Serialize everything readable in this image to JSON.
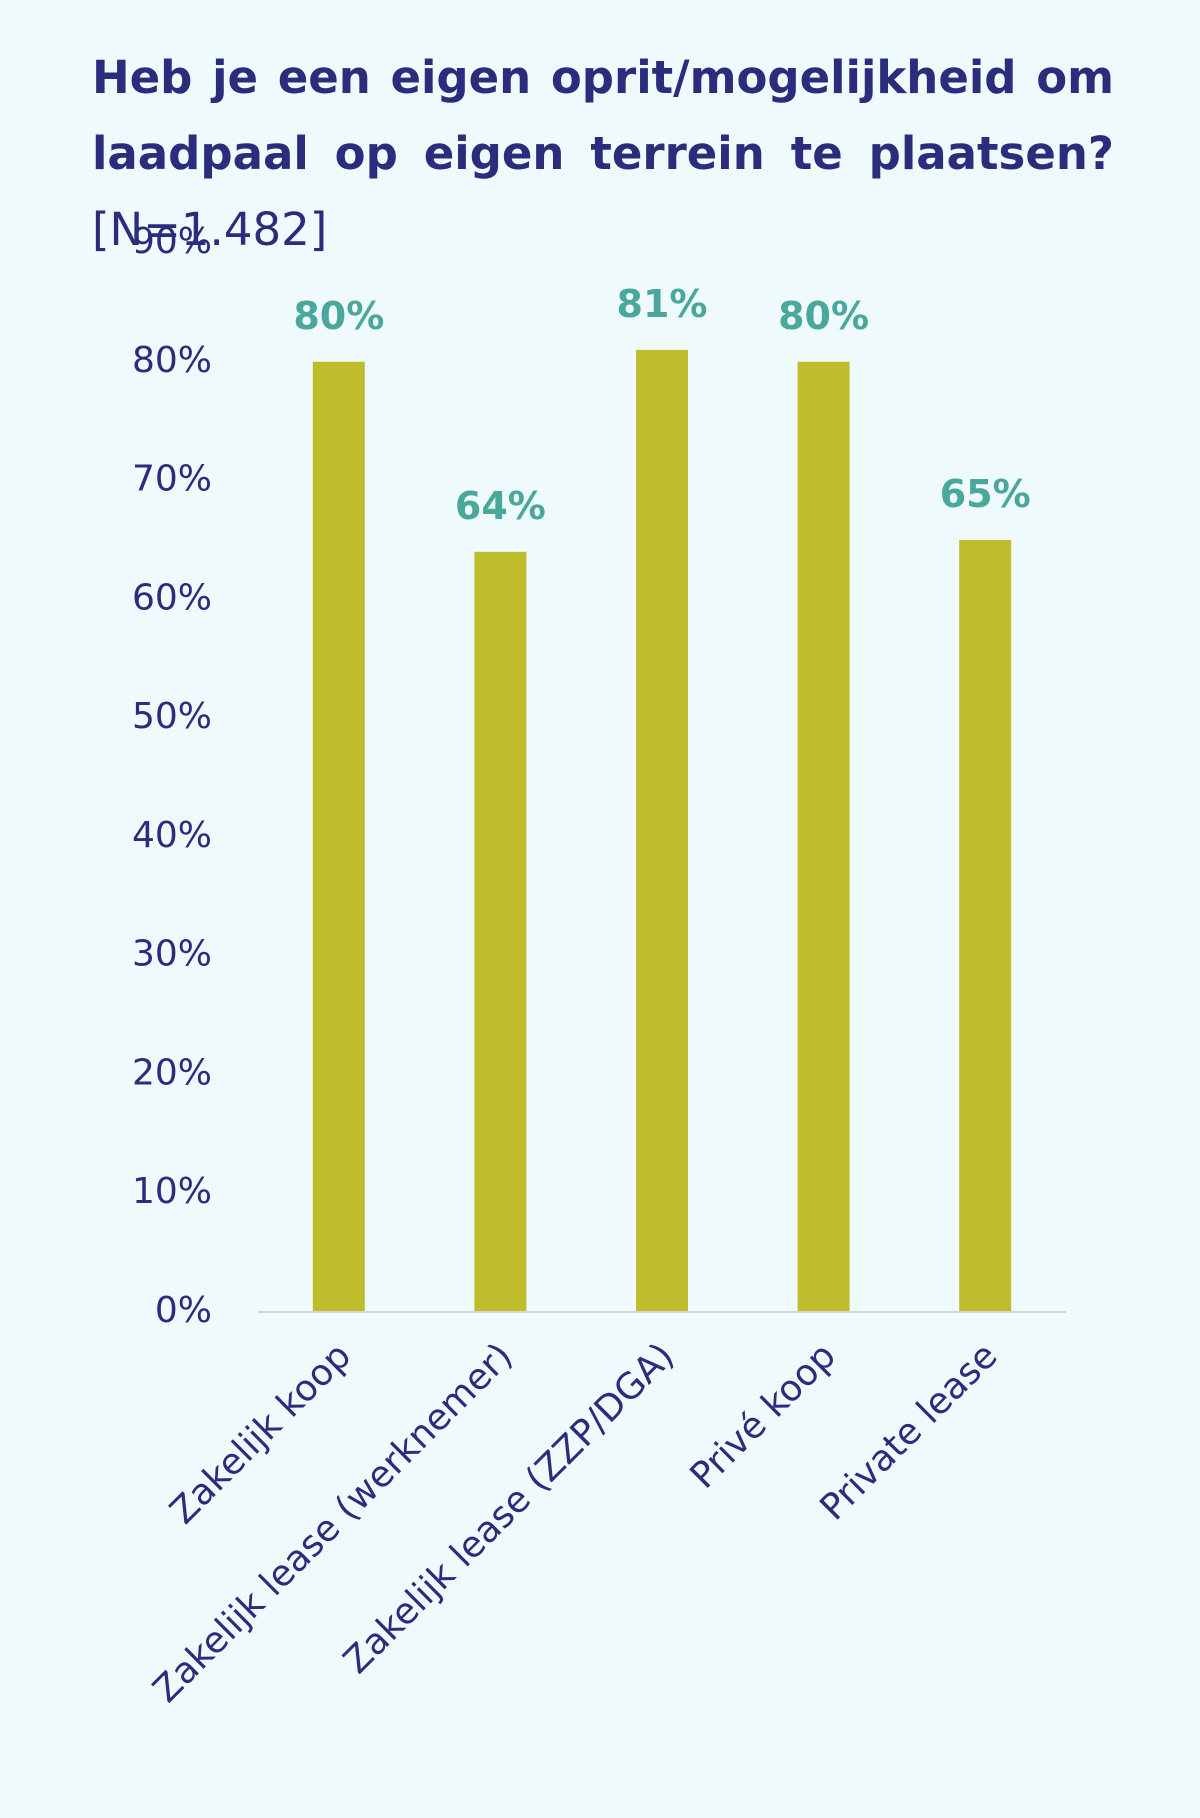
{
  "chart_data": {
    "type": "bar",
    "title": "Heb je een eigen oprit/mogelijkheid om laadpaal op eigen terrein te plaatsen?",
    "subtitle": "[N=1.482]",
    "categories": [
      "Zakelijk koop",
      "Zakelijk lease (werknemer)",
      "Zakelijk lease (ZZP/DGA)",
      "Privé koop",
      "Private lease"
    ],
    "values": [
      80,
      64,
      81,
      80,
      65
    ],
    "data_labels": [
      "80%",
      "64%",
      "81%",
      "80%",
      "65%"
    ],
    "y_ticks": [
      "0%",
      "10%",
      "20%",
      "30%",
      "40%",
      "50%",
      "60%",
      "70%",
      "80%",
      "90%"
    ],
    "ylim": [
      0,
      90
    ],
    "grid": false,
    "legend": "none",
    "colors": {
      "bar": "#c0bd2c",
      "data_label": "#4aa79c",
      "text": "#2b2d7c",
      "axis": "#d2d6d6",
      "background": "#effafd"
    }
  }
}
